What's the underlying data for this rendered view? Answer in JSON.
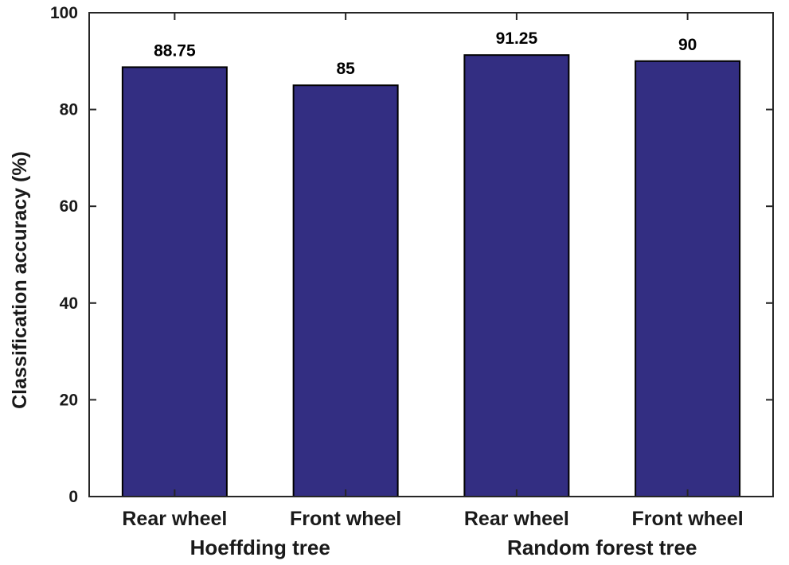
{
  "chart_data": {
    "type": "bar",
    "title": "",
    "xlabel": "",
    "ylabel": "Classification accuracy (%)",
    "ylim": [
      0,
      100
    ],
    "yticks": [
      0,
      20,
      40,
      60,
      80,
      100
    ],
    "categories": [
      "Rear wheel",
      "Front wheel",
      "Rear wheel",
      "Front wheel"
    ],
    "values": [
      88.75,
      85,
      91.25,
      90
    ],
    "data_labels": [
      "88.75",
      "85",
      "91.25",
      "90"
    ],
    "groups": [
      {
        "label": "Hoeffding tree",
        "categories": [
          0,
          1
        ]
      },
      {
        "label": "Random forest tree",
        "categories": [
          2,
          3
        ]
      }
    ],
    "bar_color": "#332e82",
    "grid": false,
    "legend": "none"
  }
}
